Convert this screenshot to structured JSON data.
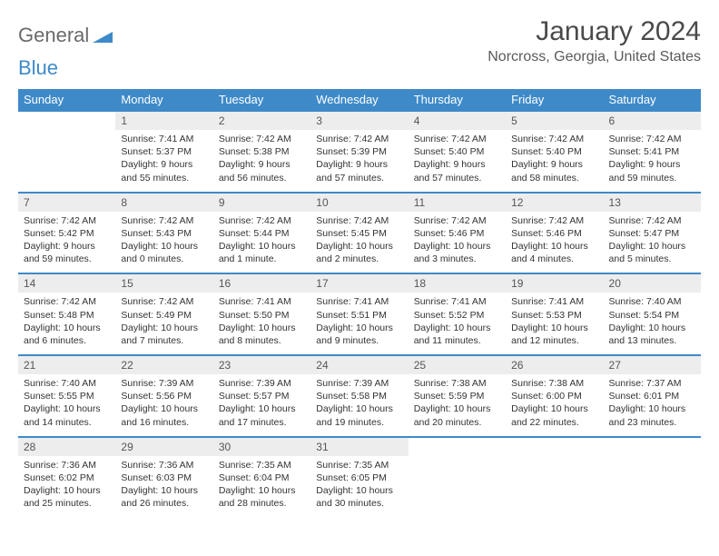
{
  "logo": {
    "text_a": "General",
    "text_b": "Blue",
    "color_gray": "#6a6a6a",
    "color_blue": "#3e8ac9"
  },
  "title": "January 2024",
  "location": "Norcross, Georgia, United States",
  "header_bg": "#3e8ac9",
  "daynum_bg": "#ededed",
  "dayhead": [
    "Sunday",
    "Monday",
    "Tuesday",
    "Wednesday",
    "Thursday",
    "Friday",
    "Saturday"
  ],
  "weeks": [
    [
      {
        "n": "",
        "sr": "",
        "ss": "",
        "dl": ""
      },
      {
        "n": "1",
        "sr": "Sunrise: 7:41 AM",
        "ss": "Sunset: 5:37 PM",
        "dl": "Daylight: 9 hours and 55 minutes."
      },
      {
        "n": "2",
        "sr": "Sunrise: 7:42 AM",
        "ss": "Sunset: 5:38 PM",
        "dl": "Daylight: 9 hours and 56 minutes."
      },
      {
        "n": "3",
        "sr": "Sunrise: 7:42 AM",
        "ss": "Sunset: 5:39 PM",
        "dl": "Daylight: 9 hours and 57 minutes."
      },
      {
        "n": "4",
        "sr": "Sunrise: 7:42 AM",
        "ss": "Sunset: 5:40 PM",
        "dl": "Daylight: 9 hours and 57 minutes."
      },
      {
        "n": "5",
        "sr": "Sunrise: 7:42 AM",
        "ss": "Sunset: 5:40 PM",
        "dl": "Daylight: 9 hours and 58 minutes."
      },
      {
        "n": "6",
        "sr": "Sunrise: 7:42 AM",
        "ss": "Sunset: 5:41 PM",
        "dl": "Daylight: 9 hours and 59 minutes."
      }
    ],
    [
      {
        "n": "7",
        "sr": "Sunrise: 7:42 AM",
        "ss": "Sunset: 5:42 PM",
        "dl": "Daylight: 9 hours and 59 minutes."
      },
      {
        "n": "8",
        "sr": "Sunrise: 7:42 AM",
        "ss": "Sunset: 5:43 PM",
        "dl": "Daylight: 10 hours and 0 minutes."
      },
      {
        "n": "9",
        "sr": "Sunrise: 7:42 AM",
        "ss": "Sunset: 5:44 PM",
        "dl": "Daylight: 10 hours and 1 minute."
      },
      {
        "n": "10",
        "sr": "Sunrise: 7:42 AM",
        "ss": "Sunset: 5:45 PM",
        "dl": "Daylight: 10 hours and 2 minutes."
      },
      {
        "n": "11",
        "sr": "Sunrise: 7:42 AM",
        "ss": "Sunset: 5:46 PM",
        "dl": "Daylight: 10 hours and 3 minutes."
      },
      {
        "n": "12",
        "sr": "Sunrise: 7:42 AM",
        "ss": "Sunset: 5:46 PM",
        "dl": "Daylight: 10 hours and 4 minutes."
      },
      {
        "n": "13",
        "sr": "Sunrise: 7:42 AM",
        "ss": "Sunset: 5:47 PM",
        "dl": "Daylight: 10 hours and 5 minutes."
      }
    ],
    [
      {
        "n": "14",
        "sr": "Sunrise: 7:42 AM",
        "ss": "Sunset: 5:48 PM",
        "dl": "Daylight: 10 hours and 6 minutes."
      },
      {
        "n": "15",
        "sr": "Sunrise: 7:42 AM",
        "ss": "Sunset: 5:49 PM",
        "dl": "Daylight: 10 hours and 7 minutes."
      },
      {
        "n": "16",
        "sr": "Sunrise: 7:41 AM",
        "ss": "Sunset: 5:50 PM",
        "dl": "Daylight: 10 hours and 8 minutes."
      },
      {
        "n": "17",
        "sr": "Sunrise: 7:41 AM",
        "ss": "Sunset: 5:51 PM",
        "dl": "Daylight: 10 hours and 9 minutes."
      },
      {
        "n": "18",
        "sr": "Sunrise: 7:41 AM",
        "ss": "Sunset: 5:52 PM",
        "dl": "Daylight: 10 hours and 11 minutes."
      },
      {
        "n": "19",
        "sr": "Sunrise: 7:41 AM",
        "ss": "Sunset: 5:53 PM",
        "dl": "Daylight: 10 hours and 12 minutes."
      },
      {
        "n": "20",
        "sr": "Sunrise: 7:40 AM",
        "ss": "Sunset: 5:54 PM",
        "dl": "Daylight: 10 hours and 13 minutes."
      }
    ],
    [
      {
        "n": "21",
        "sr": "Sunrise: 7:40 AM",
        "ss": "Sunset: 5:55 PM",
        "dl": "Daylight: 10 hours and 14 minutes."
      },
      {
        "n": "22",
        "sr": "Sunrise: 7:39 AM",
        "ss": "Sunset: 5:56 PM",
        "dl": "Daylight: 10 hours and 16 minutes."
      },
      {
        "n": "23",
        "sr": "Sunrise: 7:39 AM",
        "ss": "Sunset: 5:57 PM",
        "dl": "Daylight: 10 hours and 17 minutes."
      },
      {
        "n": "24",
        "sr": "Sunrise: 7:39 AM",
        "ss": "Sunset: 5:58 PM",
        "dl": "Daylight: 10 hours and 19 minutes."
      },
      {
        "n": "25",
        "sr": "Sunrise: 7:38 AM",
        "ss": "Sunset: 5:59 PM",
        "dl": "Daylight: 10 hours and 20 minutes."
      },
      {
        "n": "26",
        "sr": "Sunrise: 7:38 AM",
        "ss": "Sunset: 6:00 PM",
        "dl": "Daylight: 10 hours and 22 minutes."
      },
      {
        "n": "27",
        "sr": "Sunrise: 7:37 AM",
        "ss": "Sunset: 6:01 PM",
        "dl": "Daylight: 10 hours and 23 minutes."
      }
    ],
    [
      {
        "n": "28",
        "sr": "Sunrise: 7:36 AM",
        "ss": "Sunset: 6:02 PM",
        "dl": "Daylight: 10 hours and 25 minutes."
      },
      {
        "n": "29",
        "sr": "Sunrise: 7:36 AM",
        "ss": "Sunset: 6:03 PM",
        "dl": "Daylight: 10 hours and 26 minutes."
      },
      {
        "n": "30",
        "sr": "Sunrise: 7:35 AM",
        "ss": "Sunset: 6:04 PM",
        "dl": "Daylight: 10 hours and 28 minutes."
      },
      {
        "n": "31",
        "sr": "Sunrise: 7:35 AM",
        "ss": "Sunset: 6:05 PM",
        "dl": "Daylight: 10 hours and 30 minutes."
      },
      {
        "n": "",
        "sr": "",
        "ss": "",
        "dl": ""
      },
      {
        "n": "",
        "sr": "",
        "ss": "",
        "dl": ""
      },
      {
        "n": "",
        "sr": "",
        "ss": "",
        "dl": ""
      }
    ]
  ]
}
